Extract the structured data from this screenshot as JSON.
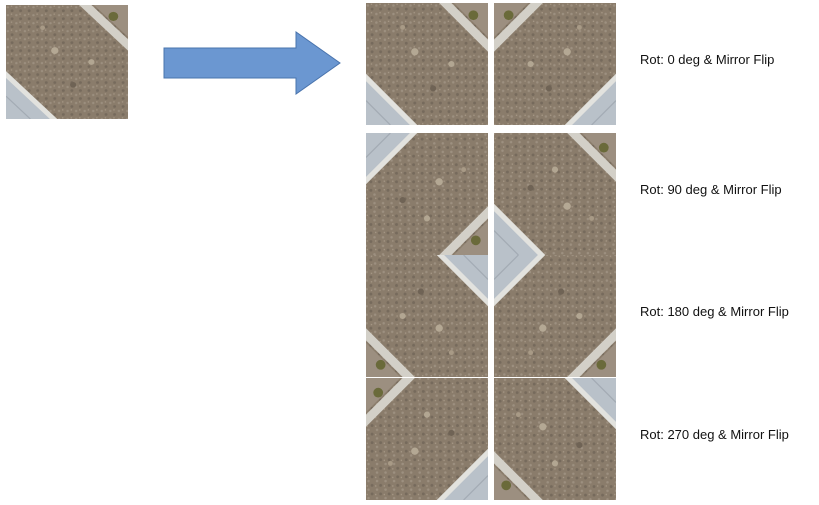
{
  "source": {
    "tile": "aerial-road-tile",
    "transform": "none"
  },
  "arrow": {
    "color": "#6b97d1",
    "stroke": "#4a74ad"
  },
  "rows": [
    {
      "label": "Rot: 0 deg & Mirror Flip",
      "rotation_deg": 0
    },
    {
      "label": "Rot: 90 deg & Mirror Flip",
      "rotation_deg": 90
    },
    {
      "label": "Rot: 180 deg & Mirror Flip",
      "rotation_deg": 180
    },
    {
      "label": "Rot: 270 deg & Mirror Flip",
      "rotation_deg": 270
    }
  ],
  "colors": {
    "soil": "#8e8070",
    "road": "#b9c1c9",
    "curb": "#e2e2de"
  }
}
